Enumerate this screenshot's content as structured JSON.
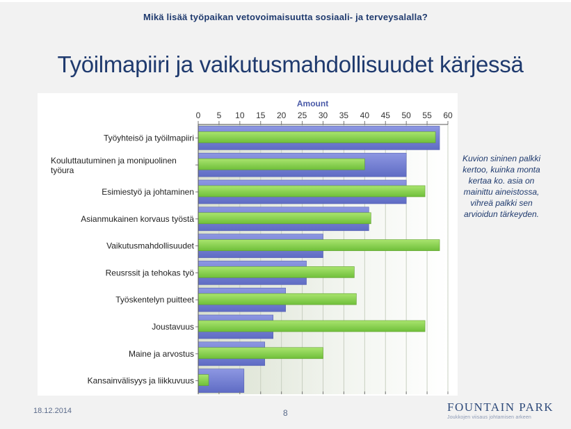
{
  "header": {
    "title": "Mikä lisää työpaikan vetovoimaisuutta sosiaali- ja terveysalalla?"
  },
  "main": {
    "title": "Työilmapiiri ja vaikutusmahdollisuudet kärjessä"
  },
  "side_note": "Kuvion sininen palkki kertoo, kuinka monta kertaa ko. asia on mainittu aineistossa, vihreä palkki sen arvioidun tärkeyden.",
  "footer": {
    "date": "18.12.2014",
    "page": "8"
  },
  "logo": {
    "name": "FOUNTAIN PARK",
    "tagline": "Joukkojen viisaus johtamisen arkeen"
  },
  "colors": {
    "blue": "#7b86d6",
    "green": "#8fd452",
    "axis_title": "#4a5aa8"
  },
  "chart_data": {
    "type": "bar",
    "orientation": "horizontal",
    "xlabel": "Amount",
    "xlim": [
      0,
      60
    ],
    "xticks": [
      0,
      5,
      10,
      15,
      20,
      25,
      30,
      35,
      40,
      45,
      50,
      55,
      60
    ],
    "categories": [
      [
        "Työyhteisö ja työilmapiiri"
      ],
      [
        "Kouluttautuminen ja monipuolinen",
        "työura"
      ],
      [
        "Esimiestyö ja johtaminen"
      ],
      [
        "Asianmukainen korvaus työstä"
      ],
      [
        "Vaikutusmahdollisuudet"
      ],
      [
        "Reusrssit ja tehokas työ"
      ],
      [
        "Työskentelyn puitteet"
      ],
      [
        "Joustavuus"
      ],
      [
        "Maine ja arvostus"
      ],
      [
        "Kansainvälisyys ja liikkuvuus"
      ]
    ],
    "series": [
      {
        "color": "#7b86d6",
        "values": [
          58,
          50,
          50,
          41,
          30,
          26,
          21,
          18,
          16,
          11
        ]
      },
      {
        "color": "#8fd452",
        "values": [
          57,
          40,
          54.5,
          41.5,
          58,
          37.5,
          38,
          54.5,
          30,
          2.5
        ]
      }
    ]
  }
}
